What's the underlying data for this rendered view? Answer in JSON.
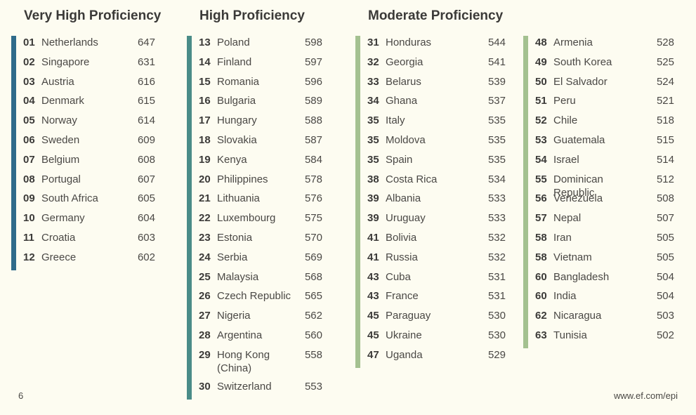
{
  "colors": {
    "very_high": "#2f6b8a",
    "high": "#4a8c88",
    "moderate": "#a4c190",
    "background": "#fdfcf1"
  },
  "headings": {
    "very_high": "Very High Proficiency",
    "high": "High Proficiency",
    "moderate": "Moderate Proficiency"
  },
  "columns": [
    {
      "band": "very_high",
      "rows": [
        {
          "rank": "01",
          "country": "Netherlands",
          "score": "647"
        },
        {
          "rank": "02",
          "country": "Singapore",
          "score": "631"
        },
        {
          "rank": "03",
          "country": "Austria",
          "score": "616"
        },
        {
          "rank": "04",
          "country": "Denmark",
          "score": "615"
        },
        {
          "rank": "05",
          "country": "Norway",
          "score": "614"
        },
        {
          "rank": "06",
          "country": "Sweden",
          "score": "609"
        },
        {
          "rank": "07",
          "country": "Belgium",
          "score": "608"
        },
        {
          "rank": "08",
          "country": "Portugal",
          "score": "607"
        },
        {
          "rank": "09",
          "country": "South Africa",
          "score": "605"
        },
        {
          "rank": "10",
          "country": "Germany",
          "score": "604"
        },
        {
          "rank": "11",
          "country": "Croatia",
          "score": "603"
        },
        {
          "rank": "12",
          "country": "Greece",
          "score": "602"
        }
      ]
    },
    {
      "band": "high",
      "rows": [
        {
          "rank": "13",
          "country": "Poland",
          "score": "598"
        },
        {
          "rank": "14",
          "country": "Finland",
          "score": "597"
        },
        {
          "rank": "15",
          "country": "Romania",
          "score": "596"
        },
        {
          "rank": "16",
          "country": "Bulgaria",
          "score": "589"
        },
        {
          "rank": "17",
          "country": "Hungary",
          "score": "588"
        },
        {
          "rank": "18",
          "country": "Slovakia",
          "score": "587"
        },
        {
          "rank": "19",
          "country": "Kenya",
          "score": "584"
        },
        {
          "rank": "20",
          "country": "Philippines",
          "score": "578"
        },
        {
          "rank": "21",
          "country": "Lithuania",
          "score": "576"
        },
        {
          "rank": "22",
          "country": "Luxembourg",
          "score": "575"
        },
        {
          "rank": "23",
          "country": "Estonia",
          "score": "570"
        },
        {
          "rank": "24",
          "country": "Serbia",
          "score": "569"
        },
        {
          "rank": "25",
          "country": "Malaysia",
          "score": "568"
        },
        {
          "rank": "26",
          "country": "Czech Republic",
          "score": "565"
        },
        {
          "rank": "27",
          "country": "Nigeria",
          "score": "562"
        },
        {
          "rank": "28",
          "country": "Argentina",
          "score": "560"
        },
        {
          "rank": "29",
          "country": "Hong Kong (China)",
          "score": "558"
        },
        {
          "rank": "30",
          "country": "Switzerland",
          "score": "553"
        }
      ]
    },
    {
      "band": "moderate",
      "rows": [
        {
          "rank": "31",
          "country": "Honduras",
          "score": "544"
        },
        {
          "rank": "32",
          "country": "Georgia",
          "score": "541"
        },
        {
          "rank": "33",
          "country": "Belarus",
          "score": "539"
        },
        {
          "rank": "34",
          "country": "Ghana",
          "score": "537"
        },
        {
          "rank": "35",
          "country": "Italy",
          "score": "535"
        },
        {
          "rank": "35",
          "country": "Moldova",
          "score": "535"
        },
        {
          "rank": "35",
          "country": "Spain",
          "score": "535"
        },
        {
          "rank": "38",
          "country": "Costa Rica",
          "score": "534"
        },
        {
          "rank": "39",
          "country": "Albania",
          "score": "533"
        },
        {
          "rank": "39",
          "country": "Uruguay",
          "score": "533"
        },
        {
          "rank": "41",
          "country": "Bolivia",
          "score": "532"
        },
        {
          "rank": "41",
          "country": "Russia",
          "score": "532"
        },
        {
          "rank": "43",
          "country": "Cuba",
          "score": "531"
        },
        {
          "rank": "43",
          "country": "France",
          "score": "531"
        },
        {
          "rank": "45",
          "country": "Paraguay",
          "score": "530"
        },
        {
          "rank": "45",
          "country": "Ukraine",
          "score": "530"
        },
        {
          "rank": "47",
          "country": "Uganda",
          "score": "529"
        }
      ]
    },
    {
      "band": "moderate",
      "rows": [
        {
          "rank": "48",
          "country": "Armenia",
          "score": "528"
        },
        {
          "rank": "49",
          "country": "South Korea",
          "score": "525"
        },
        {
          "rank": "50",
          "country": "El Salvador",
          "score": "524"
        },
        {
          "rank": "51",
          "country": "Peru",
          "score": "521"
        },
        {
          "rank": "52",
          "country": "Chile",
          "score": "518"
        },
        {
          "rank": "53",
          "country": "Guatemala",
          "score": "515"
        },
        {
          "rank": "54",
          "country": "Israel",
          "score": "514"
        },
        {
          "rank": "55",
          "country": "Dominican Republic",
          "score": "512"
        },
        {
          "rank": "56",
          "country": "Venezuela",
          "score": "508"
        },
        {
          "rank": "57",
          "country": "Nepal",
          "score": "507"
        },
        {
          "rank": "58",
          "country": "Iran",
          "score": "505"
        },
        {
          "rank": "58",
          "country": "Vietnam",
          "score": "505"
        },
        {
          "rank": "60",
          "country": "Bangladesh",
          "score": "504"
        },
        {
          "rank": "60",
          "country": "India",
          "score": "504"
        },
        {
          "rank": "62",
          "country": "Nicaragua",
          "score": "503"
        },
        {
          "rank": "63",
          "country": "Tunisia",
          "score": "502"
        }
      ]
    }
  ],
  "footer": {
    "page_number": "6",
    "url": "www.ef.com/epi"
  }
}
